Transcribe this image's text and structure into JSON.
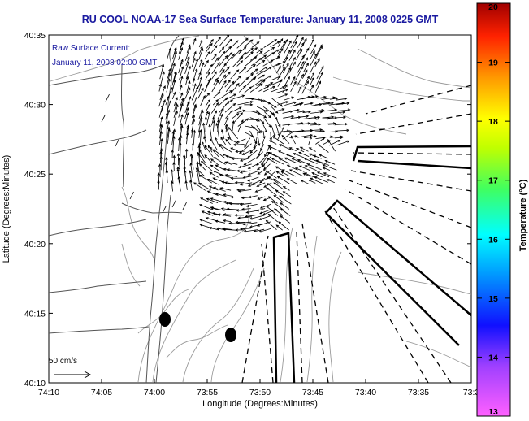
{
  "title": "RU COOL  NOAA-17  Sea Surface Temperature:  January 11, 2008 0225 GMT",
  "annotation": {
    "line1": "Raw Surface Current:",
    "line2": "January 11, 2008 02:00 GMT"
  },
  "scale_label": "50 cm/s",
  "axes": {
    "xlabel": "Longitude (Degrees:Minutes)",
    "ylabel": "Latitude (Degrees:Minutes)",
    "x_ticks": [
      "74:10",
      "74:05",
      "74:00",
      "73:55",
      "73:50",
      "73:45",
      "73:40",
      "73:35",
      "73:3"
    ],
    "y_ticks": [
      "40:10",
      "40:15",
      "40:20",
      "40:25",
      "40:30",
      "40:35"
    ]
  },
  "colorbar": {
    "label": "Temperature (°C)",
    "ticks": [
      "13",
      "14",
      "15",
      "16",
      "17",
      "18",
      "19",
      "20"
    ],
    "min": 13,
    "max": 20
  },
  "colors": {
    "title": "#1a1aa0",
    "annotation": "#1a1aa0",
    "land_contour": "#555555",
    "bathymetry": "#999999",
    "vectors": "#000000"
  }
}
